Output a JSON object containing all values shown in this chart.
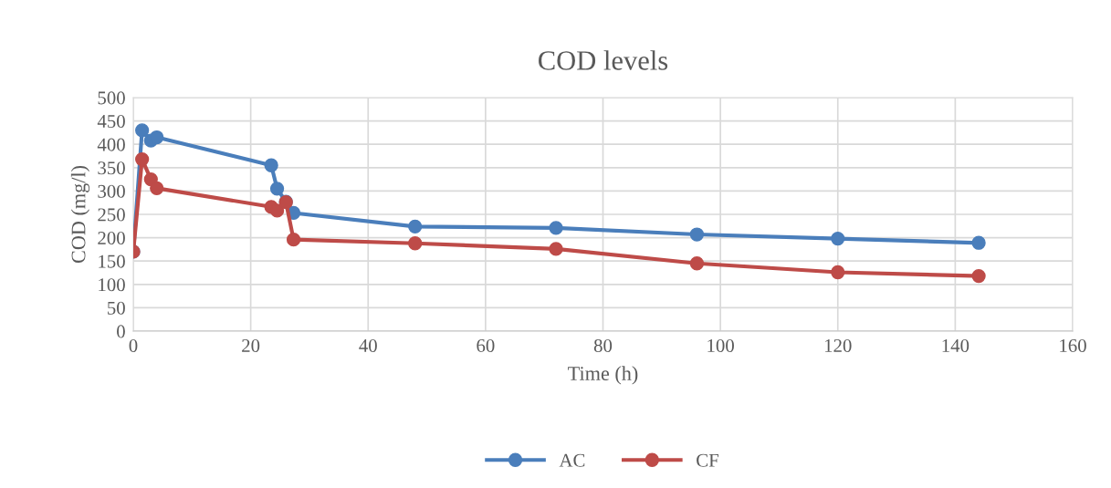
{
  "chart_data": {
    "type": "line",
    "title": "COD levels",
    "xlabel": "Time (h)",
    "ylabel": "COD (mg/l)",
    "x": [
      0,
      1.5,
      3,
      4,
      23.5,
      24.5,
      26,
      27.3,
      48,
      72,
      96,
      120,
      144
    ],
    "series": [
      {
        "name": "AC",
        "color": "#4a7ebb",
        "values": [
          170,
          430,
          408,
          415,
          355,
          305,
          277,
          253,
          224,
          221,
          207,
          198,
          189
        ]
      },
      {
        "name": "CF",
        "color": "#be4b48",
        "values": [
          170,
          368,
          325,
          306,
          266,
          258,
          276,
          196,
          188,
          176,
          145,
          126,
          118
        ]
      }
    ],
    "xlim": [
      0,
      160
    ],
    "xticks": [
      0,
      20,
      40,
      60,
      80,
      100,
      120,
      140,
      160
    ],
    "ylim": [
      0,
      500
    ],
    "yticks": [
      0,
      50,
      100,
      150,
      200,
      250,
      300,
      350,
      400,
      450,
      500
    ],
    "grid": true,
    "legend": "bottom",
    "marker": "circle",
    "line_style": "solid"
  }
}
